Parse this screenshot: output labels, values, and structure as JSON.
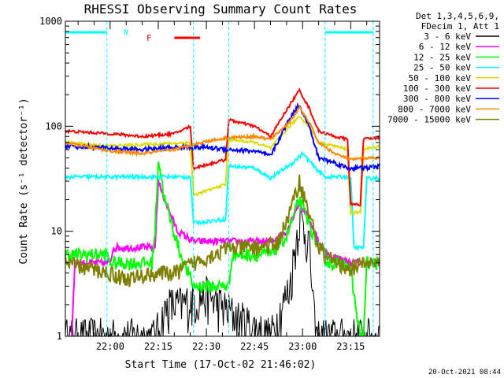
{
  "chart_data": {
    "type": "line",
    "title": "RHESSI Observing Summary Count Rates",
    "xlabel": "Start Time (17-Oct-02 21:46:02)",
    "ylabel": "Count Rate (s⁻¹ detector⁻¹)",
    "y_scale": "log",
    "ylim": [
      1,
      1000
    ],
    "xlim": [
      "21:46:02",
      "23:24:00"
    ],
    "x_ticks": [
      "22:00",
      "22:15",
      "22:30",
      "22:45",
      "23:00",
      "23:15"
    ],
    "y_ticks": [
      "1",
      "10",
      "100",
      "1000"
    ],
    "header": [
      "Det 1,3,4,5,6,9,",
      "FDecim 1, Att 1"
    ],
    "timestamp": "20-Oct-2021 08:44",
    "annotations": {
      "night_label": "N",
      "flare_label": "F",
      "night_intervals": [
        [
          "21:46:02",
          "21:59:00"
        ],
        [
          "23:07:00",
          "23:22:00"
        ]
      ],
      "flare_interval": [
        "22:20:00",
        "22:28:00"
      ],
      "night_color": "#00ffff",
      "flare_color": "#ff0000",
      "boundary_times": [
        "21:59:00",
        "22:26:00",
        "22:37:00",
        "23:07:00",
        "23:22:00"
      ]
    },
    "series": [
      {
        "name": "3 - 6 keV",
        "color": "#000000",
        "noise": 0.5,
        "points": [
          [
            "21:46",
            1
          ],
          [
            "22:14",
            1
          ],
          [
            "22:18",
            2
          ],
          [
            "22:22",
            2
          ],
          [
            "22:30",
            2.5
          ],
          [
            "22:40",
            1.5
          ],
          [
            "22:50",
            1
          ],
          [
            "22:56",
            3
          ],
          [
            "22:59",
            14
          ],
          [
            "23:02",
            8
          ],
          [
            "23:04",
            1
          ],
          [
            "23:24",
            1
          ]
        ]
      },
      {
        "name": "6 - 12 keV",
        "color": "#ff00ff",
        "noise": 0.08,
        "points": [
          [
            "21:48",
            1
          ],
          [
            "21:49",
            5
          ],
          [
            "22:00",
            5
          ],
          [
            "22:01",
            7
          ],
          [
            "22:14",
            7
          ],
          [
            "22:15",
            30
          ],
          [
            "22:17",
            20
          ],
          [
            "22:21",
            10
          ],
          [
            "22:26",
            8
          ],
          [
            "22:38",
            8
          ],
          [
            "22:50",
            8
          ],
          [
            "22:55",
            10
          ],
          [
            "22:59",
            19
          ],
          [
            "23:02",
            13
          ],
          [
            "23:06",
            7
          ],
          [
            "23:08",
            6
          ],
          [
            "23:15",
            5
          ],
          [
            "23:18",
            5
          ]
        ]
      },
      {
        "name": "12 - 25 keV",
        "color": "#00ff00",
        "noise": 0.15,
        "points": [
          [
            "21:46",
            6
          ],
          [
            "21:59",
            6
          ],
          [
            "22:00",
            5
          ],
          [
            "22:13",
            5
          ],
          [
            "22:14",
            10
          ],
          [
            "22:15",
            50
          ],
          [
            "22:17",
            20
          ],
          [
            "22:22",
            6
          ],
          [
            "22:26",
            3
          ],
          [
            "22:37",
            3
          ],
          [
            "22:38",
            6
          ],
          [
            "22:50",
            6
          ],
          [
            "22:55",
            9
          ],
          [
            "22:59",
            20
          ],
          [
            "23:02",
            12
          ],
          [
            "23:06",
            6
          ],
          [
            "23:08",
            5
          ],
          [
            "23:14",
            5
          ],
          [
            "23:15",
            4
          ],
          [
            "23:18",
            1
          ],
          [
            "23:19",
            1
          ],
          [
            "23:20",
            5
          ],
          [
            "23:24",
            5
          ]
        ]
      },
      {
        "name": "25 - 50 keV",
        "color": "#00ffff",
        "noise": 0.04,
        "points": [
          [
            "21:46",
            33
          ],
          [
            "22:00",
            33
          ],
          [
            "22:20",
            33
          ],
          [
            "22:25",
            33
          ],
          [
            "22:26",
            12
          ],
          [
            "22:36",
            13
          ],
          [
            "22:37",
            42
          ],
          [
            "22:45",
            40
          ],
          [
            "22:50",
            32
          ],
          [
            "22:57",
            45
          ],
          [
            "23:00",
            55
          ],
          [
            "23:04",
            40
          ],
          [
            "23:07",
            33
          ],
          [
            "23:15",
            33
          ],
          [
            "23:16",
            7
          ],
          [
            "23:19",
            7
          ],
          [
            "23:20",
            32
          ],
          [
            "23:24",
            32
          ]
        ]
      },
      {
        "name": "50 - 100 keV",
        "color": "#dddd00",
        "noise": 0.03,
        "points": [
          [
            "21:46",
            70
          ],
          [
            "22:00",
            65
          ],
          [
            "22:25",
            70
          ],
          [
            "22:26",
            22
          ],
          [
            "22:36",
            28
          ],
          [
            "22:37",
            75
          ],
          [
            "22:45",
            70
          ],
          [
            "22:50",
            62
          ],
          [
            "22:56",
            100
          ],
          [
            "22:59",
            125
          ],
          [
            "23:02",
            100
          ],
          [
            "23:05",
            70
          ],
          [
            "23:10",
            65
          ],
          [
            "23:14",
            60
          ],
          [
            "23:15",
            15
          ],
          [
            "23:18",
            15
          ],
          [
            "23:19",
            60
          ],
          [
            "23:24",
            65
          ]
        ]
      },
      {
        "name": "100 - 300 keV",
        "color": "#ff0000",
        "noise": 0.03,
        "points": [
          [
            "21:46",
            90
          ],
          [
            "22:00",
            85
          ],
          [
            "22:10",
            80
          ],
          [
            "22:20",
            85
          ],
          [
            "22:25",
            100
          ],
          [
            "22:26",
            40
          ],
          [
            "22:36",
            48
          ],
          [
            "22:37",
            115
          ],
          [
            "22:45",
            100
          ],
          [
            "22:50",
            80
          ],
          [
            "22:56",
            160
          ],
          [
            "22:59",
            220
          ],
          [
            "23:02",
            150
          ],
          [
            "23:05",
            90
          ],
          [
            "23:10",
            80
          ],
          [
            "23:14",
            75
          ],
          [
            "23:15",
            18
          ],
          [
            "23:18",
            18
          ],
          [
            "23:19",
            75
          ],
          [
            "23:24",
            78
          ]
        ]
      },
      {
        "name": "300 - 800 keV",
        "color": "#0000ff",
        "noise": 0.05,
        "points": [
          [
            "21:46",
            65
          ],
          [
            "22:00",
            62
          ],
          [
            "22:10",
            60
          ],
          [
            "22:20",
            63
          ],
          [
            "22:25",
            63
          ],
          [
            "22:30",
            63
          ],
          [
            "22:37",
            60
          ],
          [
            "22:45",
            58
          ],
          [
            "22:50",
            52
          ],
          [
            "22:56",
            120
          ],
          [
            "22:59",
            160
          ],
          [
            "23:02",
            100
          ],
          [
            "23:05",
            50
          ],
          [
            "23:10",
            45
          ],
          [
            "23:14",
            40
          ],
          [
            "23:15",
            40
          ],
          [
            "23:20",
            40
          ],
          [
            "23:24",
            42
          ]
        ]
      },
      {
        "name": "800 - 7000 keV",
        "color": "#ff8800",
        "noise": 0.03,
        "points": [
          [
            "21:46",
            70
          ],
          [
            "22:00",
            58
          ],
          [
            "22:10",
            55
          ],
          [
            "22:20",
            60
          ],
          [
            "22:30",
            72
          ],
          [
            "22:37",
            78
          ],
          [
            "22:45",
            80
          ],
          [
            "22:50",
            75
          ],
          [
            "22:56",
            110
          ],
          [
            "22:59",
            150
          ],
          [
            "23:02",
            110
          ],
          [
            "23:05",
            70
          ],
          [
            "23:10",
            55
          ],
          [
            "23:15",
            48
          ],
          [
            "23:20",
            50
          ],
          [
            "23:24",
            50
          ]
        ]
      },
      {
        "name": "7000 - 15000 keV",
        "color": "#808000",
        "noise": 0.18,
        "points": [
          [
            "21:46",
            5
          ],
          [
            "22:00",
            4
          ],
          [
            "22:05",
            3.5
          ],
          [
            "22:14",
            4
          ],
          [
            "22:20",
            4
          ],
          [
            "22:26",
            5
          ],
          [
            "22:37",
            7
          ],
          [
            "22:45",
            7
          ],
          [
            "22:52",
            7.5
          ],
          [
            "22:56",
            15
          ],
          [
            "22:59",
            30
          ],
          [
            "23:02",
            15
          ],
          [
            "23:05",
            7
          ],
          [
            "23:10",
            5
          ],
          [
            "23:15",
            4.5
          ],
          [
            "23:20",
            5
          ],
          [
            "23:24",
            5
          ]
        ]
      }
    ]
  }
}
